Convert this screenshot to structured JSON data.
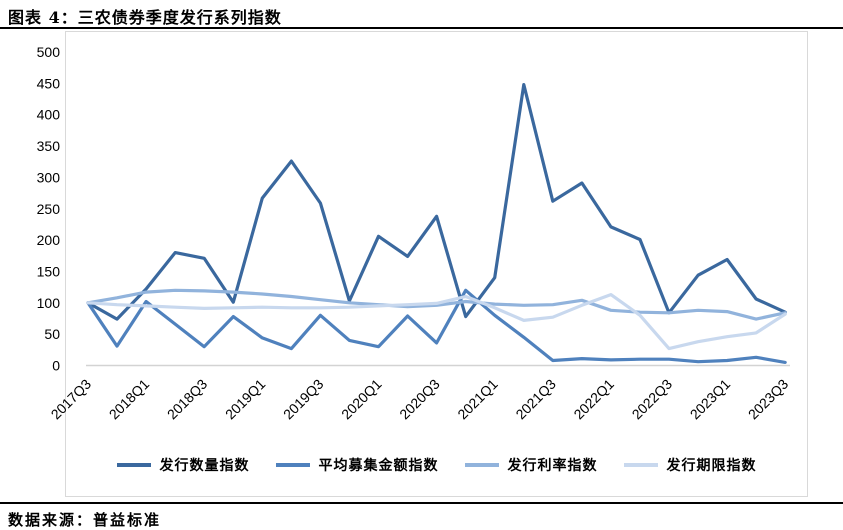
{
  "header": {
    "title": "图表 4：三农债券季度发行系列指数"
  },
  "footer": {
    "source": "数据来源：普益标准"
  },
  "chart_data": {
    "type": "line",
    "title": "三农债券季度发行系列指数",
    "categories": [
      "2017Q3",
      "2017Q4",
      "2018Q1",
      "2018Q2",
      "2018Q3",
      "2018Q4",
      "2019Q1",
      "2019Q2",
      "2019Q3",
      "2019Q4",
      "2020Q1",
      "2020Q2",
      "2020Q3",
      "2020Q4",
      "2021Q1",
      "2021Q2",
      "2021Q3",
      "2021Q4",
      "2022Q1",
      "2022Q2",
      "2022Q3",
      "2022Q4",
      "2023Q1",
      "2023Q2",
      "2023Q3"
    ],
    "x_tick_labels_shown_every": 2,
    "series": [
      {
        "name": "发行数量指数",
        "color": "#3a689e",
        "values": [
          100,
          74,
          122,
          180,
          171,
          101,
          267,
          326,
          259,
          103,
          206,
          174,
          238,
          78,
          140,
          448,
          262,
          291,
          221,
          201,
          84,
          144,
          169,
          106,
          85
        ]
      },
      {
        "name": "平均募集金额指数",
        "color": "#4f81bd",
        "values": [
          100,
          31,
          102,
          66,
          30,
          78,
          44,
          27,
          80,
          40,
          30,
          79,
          36,
          120,
          80,
          45,
          8,
          11,
          9,
          10,
          10,
          6,
          8,
          13,
          5
        ]
      },
      {
        "name": "发行利率指数",
        "color": "#91b3dc",
        "values": [
          100,
          108,
          117,
          120,
          119,
          117,
          114,
          110,
          105,
          100,
          97,
          94,
          96,
          102,
          98,
          96,
          97,
          104,
          88,
          85,
          84,
          88,
          86,
          74,
          84
        ]
      },
      {
        "name": "发行期限指数",
        "color": "#c8d8ee",
        "values": [
          100,
          97,
          95,
          93,
          91,
          92,
          93,
          92,
          92,
          93,
          95,
          97,
          99,
          110,
          92,
          72,
          77,
          96,
          113,
          80,
          27,
          38,
          46,
          52,
          82
        ]
      }
    ],
    "ylim": [
      0,
      500
    ],
    "ytick_step": 50,
    "grid": false,
    "legend_position": "bottom",
    "axis_line_color": "#d3d3d3"
  }
}
